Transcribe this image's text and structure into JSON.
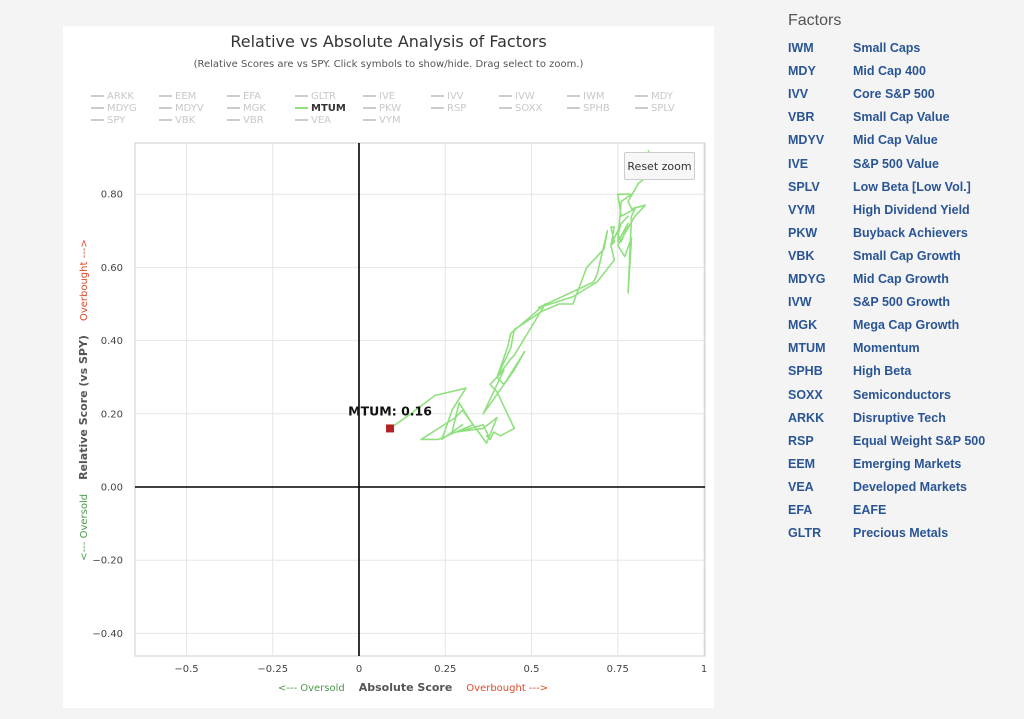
{
  "chart_data": {
    "type": "line",
    "title": "Relative vs Absolute Analysis of Factors",
    "subtitle": "(Relative Scores are vs SPY. Click symbols to show/hide. Drag select to zoom.)",
    "xlabel": "Absolute Score",
    "ylabel": "Relative Score (vs SPY)",
    "x_axis_annotations": {
      "left": "<--- Oversold",
      "right": "Overbought --->"
    },
    "y_axis_annotations": {
      "bottom": "<--- Oversold",
      "top": "Overbought --->"
    },
    "xlim": [
      -0.64,
      1.0
    ],
    "ylim": [
      -0.46,
      0.93
    ],
    "x_ticks": [
      -0.5,
      -0.25,
      0,
      0.25,
      0.5,
      0.75,
      1
    ],
    "x_tick_labels": [
      "−0.5",
      "−0.25",
      "0",
      "0.25",
      "0.5",
      "0.75",
      "1"
    ],
    "y_ticks": [
      0.8,
      0.6,
      0.4,
      0.2,
      0,
      -0.2,
      -0.4
    ],
    "y_tick_labels": [
      "0.80",
      "0.60",
      "0.40",
      "0.20",
      "0.00",
      "−0.20",
      "−0.40"
    ],
    "grid": true,
    "legend_position": "top",
    "legend": [
      "ARKK",
      "EEM",
      "EFA",
      "GLTR",
      "IVE",
      "IVV",
      "IVW",
      "IWM",
      "MDY",
      "MDYG",
      "MDYV",
      "MGK",
      "MTUM",
      "PKW",
      "RSP",
      "SOXX",
      "SPHB",
      "SPLV",
      "SPY",
      "VBK",
      "VBR",
      "VEA",
      "VYM"
    ],
    "active_series": "MTUM",
    "series": [
      {
        "name": "MTUM",
        "color": "#90e080",
        "marker_color": "#b22222",
        "points": [
          [
            0.09,
            0.16
          ],
          [
            0.15,
            0.2
          ],
          [
            0.22,
            0.25
          ],
          [
            0.31,
            0.27
          ],
          [
            0.27,
            0.21
          ],
          [
            0.24,
            0.13
          ],
          [
            0.3,
            0.17
          ],
          [
            0.27,
            0.15
          ],
          [
            0.29,
            0.23
          ],
          [
            0.33,
            0.17
          ],
          [
            0.23,
            0.13
          ],
          [
            0.18,
            0.13
          ],
          [
            0.28,
            0.19
          ],
          [
            0.3,
            0.21
          ],
          [
            0.37,
            0.12
          ],
          [
            0.4,
            0.19
          ],
          [
            0.36,
            0.16
          ],
          [
            0.28,
            0.15
          ],
          [
            0.36,
            0.17
          ],
          [
            0.38,
            0.13
          ],
          [
            0.37,
            0.14
          ],
          [
            0.38,
            0.13
          ],
          [
            0.39,
            0.15
          ],
          [
            0.41,
            0.14
          ],
          [
            0.45,
            0.16
          ],
          [
            0.4,
            0.26
          ],
          [
            0.38,
            0.28
          ],
          [
            0.42,
            0.32
          ],
          [
            0.36,
            0.2
          ],
          [
            0.39,
            0.24
          ],
          [
            0.45,
            0.32
          ],
          [
            0.48,
            0.37
          ],
          [
            0.42,
            0.28
          ],
          [
            0.4,
            0.3
          ],
          [
            0.44,
            0.35
          ],
          [
            0.45,
            0.36
          ],
          [
            0.54,
            0.5
          ],
          [
            0.44,
            0.42
          ],
          [
            0.43,
            0.38
          ],
          [
            0.4,
            0.3
          ],
          [
            0.44,
            0.38
          ],
          [
            0.45,
            0.43
          ],
          [
            0.53,
            0.48
          ],
          [
            0.58,
            0.5
          ],
          [
            0.62,
            0.5
          ],
          [
            0.66,
            0.6
          ],
          [
            0.71,
            0.65
          ],
          [
            0.72,
            0.7
          ],
          [
            0.69,
            0.58
          ],
          [
            0.68,
            0.56
          ],
          [
            0.52,
            0.49
          ],
          [
            0.62,
            0.52
          ],
          [
            0.69,
            0.56
          ],
          [
            0.74,
            0.62
          ],
          [
            0.73,
            0.66
          ],
          [
            0.74,
            0.71
          ],
          [
            0.73,
            0.71
          ],
          [
            0.74,
            0.67
          ],
          [
            0.73,
            0.66
          ],
          [
            0.76,
            0.72
          ],
          [
            0.78,
            0.74
          ],
          [
            0.76,
            0.72
          ],
          [
            0.75,
            0.69
          ],
          [
            0.76,
            0.67
          ],
          [
            0.78,
            0.72
          ],
          [
            0.75,
            0.67
          ],
          [
            0.76,
            0.78
          ],
          [
            0.79,
            0.8
          ],
          [
            0.75,
            0.8
          ],
          [
            0.76,
            0.74
          ],
          [
            0.8,
            0.76
          ],
          [
            0.79,
            0.74
          ],
          [
            0.78,
            0.53
          ],
          [
            0.79,
            0.68
          ],
          [
            0.77,
            0.63
          ],
          [
            0.75,
            0.66
          ],
          [
            0.8,
            0.74
          ],
          [
            0.83,
            0.77
          ],
          [
            0.79,
            0.76
          ],
          [
            0.78,
            0.78
          ],
          [
            0.81,
            0.83
          ],
          [
            0.84,
            0.85
          ],
          [
            0.83,
            0.88
          ],
          [
            0.84,
            0.92
          ]
        ]
      }
    ],
    "point_label": "MTUM: 0.16",
    "reset_zoom_label": "Reset zoom"
  },
  "factors": {
    "title": "Factors",
    "items": [
      {
        "ticker": "IWM",
        "name": "Small Caps"
      },
      {
        "ticker": "MDY",
        "name": "Mid Cap 400"
      },
      {
        "ticker": "IVV",
        "name": "Core S&P 500"
      },
      {
        "ticker": "VBR",
        "name": "Small Cap Value"
      },
      {
        "ticker": "MDYV",
        "name": "Mid Cap Value"
      },
      {
        "ticker": "IVE",
        "name": "S&P 500 Value"
      },
      {
        "ticker": "SPLV",
        "name": "Low Beta [Low Vol.]"
      },
      {
        "ticker": "VYM",
        "name": "High Dividend Yield"
      },
      {
        "ticker": "PKW",
        "name": "Buyback Achievers"
      },
      {
        "ticker": "VBK",
        "name": "Small Cap Growth"
      },
      {
        "ticker": "MDYG",
        "name": "Mid Cap Growth"
      },
      {
        "ticker": "IVW",
        "name": "S&P 500 Growth"
      },
      {
        "ticker": "MGK",
        "name": "Mega Cap Growth"
      },
      {
        "ticker": "MTUM",
        "name": "Momentum"
      },
      {
        "ticker": "SPHB",
        "name": "High Beta"
      },
      {
        "ticker": "SOXX",
        "name": "Semiconductors"
      },
      {
        "ticker": "ARKK",
        "name": "Disruptive Tech"
      },
      {
        "ticker": "RSP",
        "name": "Equal Weight S&P 500"
      },
      {
        "ticker": "EEM",
        "name": "Emerging Markets"
      },
      {
        "ticker": "VEA",
        "name": "Developed Markets"
      },
      {
        "ticker": "EFA",
        "name": "EAFE"
      },
      {
        "ticker": "GLTR",
        "name": "Precious Metals"
      }
    ]
  }
}
